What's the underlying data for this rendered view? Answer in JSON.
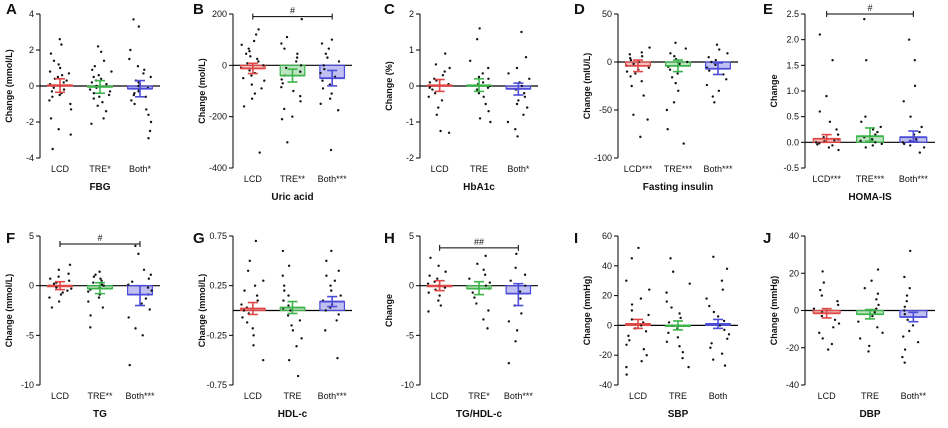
{
  "figure": {
    "colors": {
      "LCD": "#e04848",
      "TRE": "#3cb44b",
      "Both": "#4c4cd8",
      "bar_alpha": 0.35,
      "axis": "#000000",
      "dots": "#111111"
    }
  },
  "chart_data": [
    {
      "type": "bar",
      "panel": "A",
      "title": "",
      "xlabel": "FBG",
      "ylabel": "Change (mmol/L)",
      "ylim": [
        -4,
        4
      ],
      "yticks": [
        "-4",
        "-2",
        "0",
        "2",
        "4"
      ],
      "categories": [
        "LCD",
        "TRE*",
        "Both*"
      ],
      "means": [
        0.05,
        -0.05,
        -0.15
      ],
      "ci": [
        [
          -0.35,
          0.4
        ],
        [
          -0.4,
          0.3
        ],
        [
          -0.6,
          0.3
        ]
      ],
      "points": [
        [
          2.6,
          2.3,
          1.8,
          1.4,
          1.2,
          1.0,
          0.8,
          0.7,
          0.6,
          0.5,
          0.4,
          0.3,
          0.2,
          0.1,
          0.0,
          -0.1,
          -0.2,
          -0.3,
          -0.4,
          -0.5,
          -0.6,
          -0.8,
          -1.0,
          -1.3,
          -1.8,
          -2.4,
          -2.7,
          -3.5
        ],
        [
          2.2,
          1.9,
          1.4,
          1.1,
          0.9,
          0.8,
          0.6,
          0.5,
          0.4,
          0.3,
          0.2,
          0.1,
          0.0,
          -0.1,
          -0.2,
          -0.3,
          -0.4,
          -0.5,
          -0.6,
          -0.7,
          -0.9,
          -1.1,
          -1.4,
          -1.8,
          -2.1
        ],
        [
          3.7,
          3.3,
          2.0,
          1.5,
          1.1,
          0.9,
          0.7,
          0.5,
          0.3,
          0.2,
          0.1,
          0.0,
          -0.1,
          -0.2,
          -0.3,
          -0.4,
          -0.5,
          -0.6,
          -0.8,
          -1.0,
          -1.3,
          -1.6,
          -2.0,
          -2.5,
          -2.9
        ]
      ],
      "brackets": []
    },
    {
      "type": "bar",
      "panel": "B",
      "title": "",
      "xlabel": "Uric acid",
      "ylabel": "Change (mol/L)",
      "ylim": [
        -400,
        200
      ],
      "yticks": [
        "-400",
        "-200",
        "0",
        "200"
      ],
      "categories": [
        "LCD",
        "TRE**",
        "Both***"
      ],
      "means": [
        -12,
        -40,
        -50
      ],
      "ci": [
        [
          -32,
          8
        ],
        [
          -65,
          -15
        ],
        [
          -80,
          -20
        ]
      ],
      "points": [
        [
          140,
          120,
          95,
          80,
          65,
          55,
          45,
          35,
          25,
          15,
          8,
          0,
          -10,
          -20,
          -30,
          -40,
          -50,
          -60,
          -75,
          -90,
          -110,
          -130,
          -160,
          -340
        ],
        [
          180,
          110,
          85,
          65,
          45,
          30,
          15,
          0,
          -10,
          -25,
          -40,
          -55,
          -70,
          -85,
          -100,
          -120,
          -140,
          -170,
          -200,
          -210,
          -300
        ],
        [
          100,
          85,
          65,
          45,
          30,
          15,
          0,
          -15,
          -30,
          -45,
          -60,
          -75,
          -90,
          -110,
          -130,
          -150,
          -175,
          -330
        ]
      ],
      "brackets": [
        {
          "from": 0,
          "to": 2,
          "y": 190,
          "label": "#"
        }
      ]
    },
    {
      "type": "bar",
      "panel": "C",
      "title": "",
      "xlabel": "HbA1c",
      "ylabel": "Change (%)",
      "ylim": [
        -2,
        2
      ],
      "yticks": [
        "-2",
        "-1",
        "0",
        "1",
        "2"
      ],
      "categories": [
        "LCD",
        "TRE",
        "Both*"
      ],
      "means": [
        0.02,
        0.02,
        -0.08
      ],
      "ci": [
        [
          -0.15,
          0.18
        ],
        [
          -0.15,
          0.2
        ],
        [
          -0.25,
          0.08
        ]
      ],
      "points": [
        [
          0.9,
          0.6,
          0.5,
          0.4,
          0.3,
          0.2,
          0.15,
          0.1,
          0.05,
          0.0,
          -0.05,
          -0.1,
          -0.2,
          -0.3,
          -0.4,
          -0.6,
          -0.8,
          -1.25,
          -1.3
        ],
        [
          1.6,
          1.3,
          0.7,
          0.5,
          0.35,
          0.25,
          0.2,
          0.1,
          0.05,
          0.0,
          -0.05,
          -0.1,
          -0.2,
          -0.3,
          -0.5,
          -0.7,
          -0.9,
          -1.0
        ],
        [
          1.5,
          0.8,
          0.5,
          0.35,
          0.2,
          0.1,
          0.0,
          -0.1,
          -0.2,
          -0.3,
          -0.4,
          -0.5,
          -0.6,
          -0.8,
          -1.0,
          -1.2,
          -1.4
        ]
      ],
      "brackets": []
    },
    {
      "type": "bar",
      "panel": "D",
      "title": "",
      "xlabel": "Fasting insulin",
      "ylabel": "Change (mIU/L)",
      "ylim": [
        -100,
        50
      ],
      "yticks": [
        "-100",
        "-50",
        "0",
        "50"
      ],
      "categories": [
        "LCD***",
        "TRE***",
        "Both***"
      ],
      "means": [
        -4,
        -4,
        -7
      ],
      "ci": [
        [
          -10,
          2
        ],
        [
          -10,
          2
        ],
        [
          -13,
          -1
        ]
      ],
      "points": [
        [
          15,
          10,
          8,
          6,
          4,
          2,
          0,
          -2,
          -4,
          -6,
          -8,
          -10,
          -12,
          -15,
          -20,
          -25,
          -35,
          -55,
          -60,
          -78
        ],
        [
          20,
          14,
          9,
          6,
          3,
          0,
          -2,
          -5,
          -8,
          -12,
          -16,
          -22,
          -30,
          -42,
          -50,
          -70,
          -85
        ],
        [
          18,
          13,
          9,
          5,
          2,
          0,
          -3,
          -6,
          -9,
          -13,
          -18,
          -24,
          -30,
          -36,
          -42
        ]
      ],
      "brackets": []
    },
    {
      "type": "bar",
      "panel": "E",
      "title": "",
      "xlabel": "HOMA-IS",
      "ylabel": "Change",
      "ylim": [
        -0.5,
        2.5
      ],
      "yticks": [
        "-0.5",
        "0.0",
        "0.5",
        "1.0",
        "1.5",
        "2.0",
        "2.5"
      ],
      "categories": [
        "LCD***",
        "TRE***",
        "Both***"
      ],
      "means": [
        0.07,
        0.12,
        0.1
      ],
      "ci": [
        [
          0.0,
          0.15
        ],
        [
          0.02,
          0.28
        ],
        [
          0.02,
          0.22
        ]
      ],
      "points": [
        [
          2.1,
          1.6,
          0.9,
          0.6,
          0.4,
          0.25,
          0.15,
          0.1,
          0.06,
          0.04,
          0.02,
          0.0,
          -0.02,
          -0.04,
          -0.06,
          -0.1,
          -0.15
        ],
        [
          2.4,
          1.6,
          0.5,
          0.4,
          0.3,
          0.25,
          0.2,
          0.15,
          0.1,
          0.06,
          0.03,
          0.0,
          -0.03,
          -0.06,
          -0.1
        ],
        [
          2.0,
          1.6,
          1.1,
          0.8,
          0.5,
          0.3,
          0.2,
          0.15,
          0.1,
          0.06,
          0.03,
          0.0,
          -0.03,
          -0.06,
          -0.1,
          -0.2
        ]
      ],
      "brackets": [
        {
          "from": 0,
          "to": 2,
          "y": 2.5,
          "label": "#"
        }
      ]
    },
    {
      "type": "bar",
      "panel": "F",
      "title": "",
      "xlabel": "TG",
      "ylabel": "Change (mmol/L)",
      "ylim": [
        -10,
        5
      ],
      "yticks": [
        "-10",
        "-5",
        "0",
        "5"
      ],
      "categories": [
        "LCD",
        "TRE**",
        "Both***"
      ],
      "means": [
        0.0,
        -0.3,
        -0.9
      ],
      "ci": [
        [
          -0.4,
          0.4
        ],
        [
          -0.8,
          0.3
        ],
        [
          -2.0,
          0.0
        ]
      ],
      "points": [
        [
          2.1,
          1.6,
          1.2,
          0.9,
          0.7,
          0.5,
          0.3,
          0.2,
          0.1,
          0.0,
          -0.1,
          -0.2,
          -0.3,
          -0.5,
          -0.7,
          -0.9,
          -1.2,
          -1.6,
          -2.2
        ],
        [
          1.4,
          1.1,
          0.9,
          0.7,
          0.5,
          0.3,
          0.1,
          0.0,
          -0.2,
          -0.4,
          -0.6,
          -0.9,
          -1.2,
          -1.6,
          -2.2,
          -3.0,
          -4.2
        ],
        [
          4.0,
          3.2,
          1.6,
          1.1,
          0.7,
          0.4,
          0.1,
          -0.2,
          -0.5,
          -0.9,
          -1.3,
          -1.8,
          -2.4,
          -3.2,
          -4.3,
          -5.0,
          -8.0
        ]
      ],
      "brackets": [
        {
          "from": 0,
          "to": 2,
          "y": 4.2,
          "label": "#"
        }
      ]
    },
    {
      "type": "bar",
      "panel": "G",
      "title": "",
      "xlabel": "HDL-c",
      "ylabel": "Change (mmol/L)",
      "ylim": [
        -0.75,
        0.75
      ],
      "yticks": [
        "-0.75",
        "-0.25",
        "0.25",
        "0.75"
      ],
      "categories": [
        "LCD",
        "TRE",
        "Both***"
      ],
      "ybase": 0,
      "means": [
        0.02,
        0.03,
        0.09
      ],
      "ci": [
        [
          -0.04,
          0.08
        ],
        [
          -0.03,
          0.09
        ],
        [
          0.04,
          0.14
        ]
      ],
      "points": [
        [
          0.7,
          0.5,
          0.4,
          0.3,
          0.25,
          0.2,
          0.15,
          0.1,
          0.06,
          0.03,
          0.0,
          -0.03,
          -0.07,
          -0.12,
          -0.18,
          -0.25,
          -0.35,
          -0.5
        ],
        [
          0.6,
          0.45,
          0.35,
          0.25,
          0.2,
          0.15,
          0.1,
          0.05,
          0.02,
          0.0,
          -0.05,
          -0.1,
          -0.15,
          -0.2,
          -0.28,
          -0.36,
          -0.5,
          -0.66
        ],
        [
          0.6,
          0.5,
          0.4,
          0.35,
          0.3,
          0.25,
          0.2,
          0.15,
          0.1,
          0.06,
          0.03,
          0.0,
          -0.04,
          -0.1,
          -0.2,
          -0.48
        ]
      ],
      "brackets": []
    },
    {
      "type": "bar",
      "panel": "H",
      "title": "",
      "xlabel": "TG/HDL-c",
      "ylabel": "Change",
      "ylim": [
        -10,
        5
      ],
      "yticks": [
        "-10",
        "-5",
        "0",
        "5"
      ],
      "categories": [
        "LCD",
        "TRE*",
        "Both***"
      ],
      "means": [
        0.0,
        -0.3,
        -0.8
      ],
      "ci": [
        [
          -0.5,
          0.5
        ],
        [
          -0.9,
          0.4
        ],
        [
          -2.0,
          0.2
        ]
      ],
      "points": [
        [
          2.8,
          2.0,
          1.4,
          1.0,
          0.7,
          0.4,
          0.2,
          0.0,
          -0.2,
          -0.4,
          -0.7,
          -1.0,
          -1.5,
          -2.0,
          -2.6
        ],
        [
          3.0,
          2.2,
          1.6,
          1.1,
          0.7,
          0.3,
          0.0,
          -0.3,
          -0.7,
          -1.2,
          -1.8,
          -2.5,
          -3.4,
          -4.3
        ],
        [
          3.2,
          1.8,
          1.1,
          0.5,
          0.0,
          -0.6,
          -1.3,
          -2.0,
          -2.8,
          -3.6,
          -4.5,
          -5.6,
          -7.8
        ]
      ],
      "brackets": [
        {
          "from": 0,
          "to": 2,
          "y": 3.8,
          "label": "##"
        }
      ]
    },
    {
      "type": "bar",
      "panel": "I",
      "title": "",
      "xlabel": "SBP",
      "ylabel": "Change (mmHg)",
      "ylim": [
        -40,
        60
      ],
      "yticks": [
        "-40",
        "-20",
        "0",
        "20",
        "40",
        "60"
      ],
      "categories": [
        "LCD",
        "TRE",
        "Both"
      ],
      "means": [
        1,
        0,
        1
      ],
      "ci": [
        [
          -2,
          4
        ],
        [
          -3,
          3
        ],
        [
          -2,
          4
        ]
      ],
      "points": [
        [
          52,
          45,
          30,
          24,
          18,
          14,
          10,
          7,
          4,
          2,
          0,
          -2,
          -4,
          -7,
          -10,
          -13,
          -16,
          -20,
          -24,
          -28,
          -33
        ],
        [
          45,
          36,
          28,
          22,
          16,
          12,
          8,
          5,
          2,
          0,
          -2,
          -5,
          -8,
          -11,
          -14,
          -18,
          -22,
          -28
        ],
        [
          46,
          38,
          30,
          24,
          18,
          13,
          9,
          6,
          3,
          0,
          -3,
          -6,
          -9,
          -12,
          -15,
          -19,
          -23,
          -27
        ]
      ],
      "brackets": []
    },
    {
      "type": "bar",
      "panel": "J",
      "title": "",
      "xlabel": "DBP",
      "ylabel": "Change (mmHg)",
      "ylim": [
        -40,
        40
      ],
      "yticks": [
        "-40",
        "-20",
        "0",
        "20",
        "40"
      ],
      "categories": [
        "LCD",
        "TRE",
        "Both**"
      ],
      "means": [
        -1.5,
        -2,
        -3.5
      ],
      "ci": [
        [
          -4,
          1
        ],
        [
          -4.5,
          0.5
        ],
        [
          -6,
          -1
        ]
      ],
      "points": [
        [
          21,
          15,
          11,
          8,
          5,
          3,
          1,
          -1,
          -3,
          -5,
          -7,
          -9,
          -12,
          -15,
          -18,
          -21
        ],
        [
          22,
          16,
          12,
          9,
          6,
          3,
          1,
          -1,
          -3,
          -6,
          -9,
          -12,
          -15,
          -19,
          -22
        ],
        [
          32,
          18,
          12,
          8,
          5,
          2,
          0,
          -2,
          -5,
          -8,
          -11,
          -14,
          -17,
          -21,
          -25,
          -28
        ]
      ],
      "brackets": []
    }
  ]
}
